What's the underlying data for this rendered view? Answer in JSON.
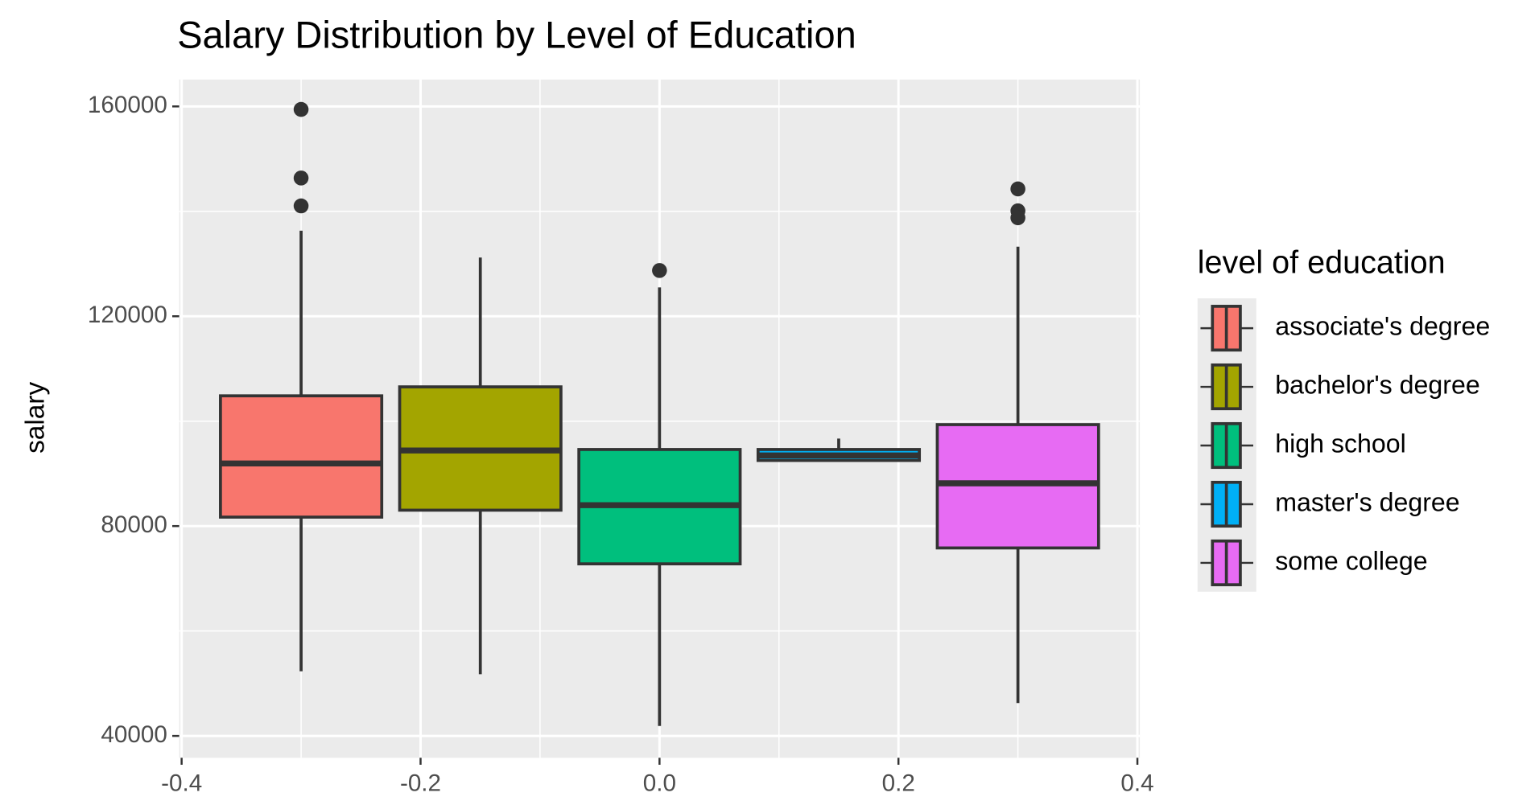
{
  "chart_data": {
    "type": "boxplot",
    "title": "Salary Distribution by Level of Education",
    "y_label": "salary",
    "legend_title": "level of education",
    "xlim": [
      -0.402,
      0.402
    ],
    "xticks": [
      -0.4,
      -0.2,
      {
        "value": 0,
        "label": "0.0"
      },
      0.2,
      0.4
    ],
    "ylim": [
      35830,
      165120
    ],
    "yticks": [
      40000,
      80000,
      120000,
      160000
    ],
    "grid": true,
    "legend_position": "right",
    "series": [
      {
        "name": "associate's degree",
        "color": "#F8766D",
        "x": -0.3,
        "whisker_low": 52320,
        "q1": 81710,
        "median": 91940,
        "q3": 104830,
        "whisker_high": 136300,
        "outliers": [
          159430,
          146350,
          141040
        ]
      },
      {
        "name": "bachelor's degree",
        "color": "#A3A500",
        "x": -0.15,
        "whisker_low": 51760,
        "q1": 83030,
        "median": 94410,
        "q3": 106540,
        "whisker_high": 131190,
        "outliers": []
      },
      {
        "name": "high school",
        "color": "#00BF7D",
        "x": 0,
        "whisker_low": 41900,
        "q1": 72800,
        "median": 83980,
        "q3": 94600,
        "whisker_high": 125500,
        "outliers": [
          128720
        ]
      },
      {
        "name": "master's degree",
        "color": "#00B0F6",
        "x": 0.15,
        "whisker_low": 92510,
        "q1": 92510,
        "median": 93460,
        "q3": 94600,
        "whisker_high": 96680,
        "outliers": []
      },
      {
        "name": "some college",
        "color": "#E76BF3",
        "x": 0.3,
        "whisker_low": 46260,
        "q1": 75830,
        "median": 88150,
        "q3": 99340,
        "whisker_high": 133270,
        "outliers": [
          144270,
          140100,
          138770
        ]
      }
    ]
  }
}
